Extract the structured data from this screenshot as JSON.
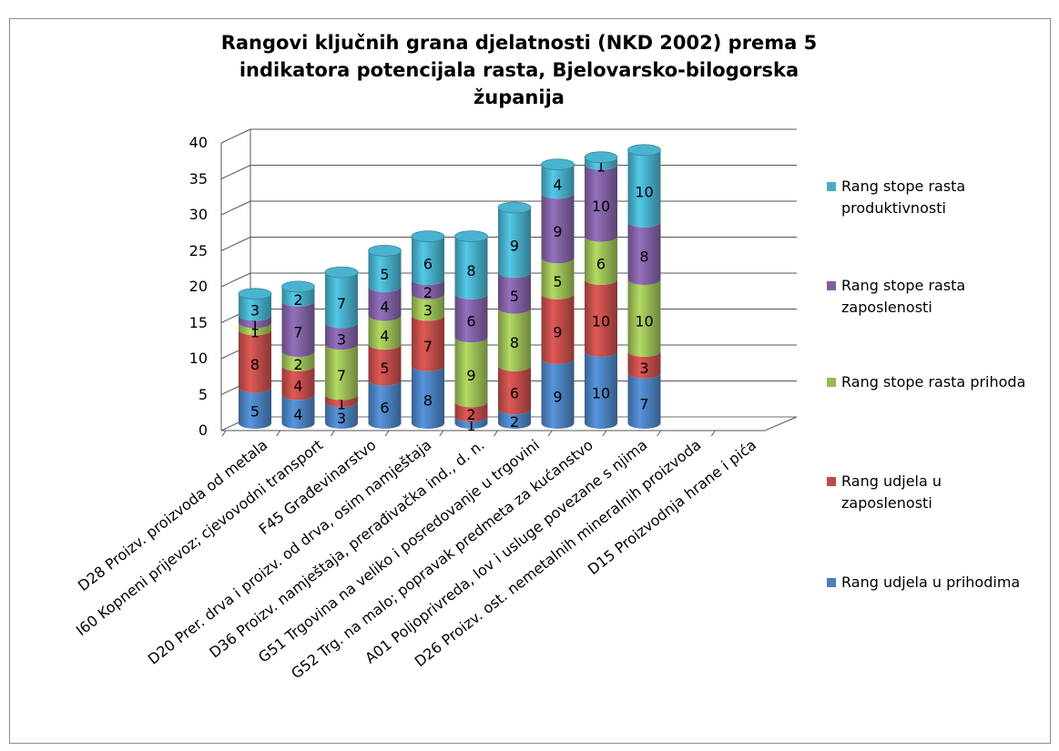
{
  "chart_data": {
    "type": "bar",
    "stacked": true,
    "three_d": true,
    "title": "Rangovi ključnih grana djelatnosti (NKD 2002) prema 5\nindikatora potencijala rasta, Bjelovarsko-bilogorska\nžupanija",
    "ylim": [
      0,
      40
    ],
    "yticks": [
      0,
      5,
      10,
      15,
      20,
      25,
      30,
      35,
      40
    ],
    "grid": true,
    "legend_position": "right",
    "categories": [
      "D28 Proizv. proizvoda od metala",
      "I60 Kopneni prijevoz; cjevovodni transport",
      "F45 Građevinarstvo",
      "D20 Prer. drva i proizv. od drva, osim namještaja",
      "D36 Proizv. namještaja, prerađivačka ind., d. n.",
      "G51 Trgovina na veliko i posredovanje u trgovini",
      "G52 Trg. na malo; popravak predmeta za kućanstvo",
      "A01 Poljoprivreda, lov i usluge povezane s njima",
      "D26 Proizv. ost. nemetalnih mineralnih proizvoda",
      "D15 Proizvodnja hrane i pića"
    ],
    "series": [
      {
        "name": "Rang udjela u prihodima",
        "color": "#4a7ebb",
        "values": [
          5,
          4,
          3,
          6,
          8,
          1,
          2,
          9,
          10,
          7
        ]
      },
      {
        "name": "Rang udjela u zaposlenosti",
        "color": "#be4b48",
        "values": [
          8,
          4,
          1,
          5,
          7,
          2,
          6,
          9,
          10,
          3
        ]
      },
      {
        "name": "Rang stope rasta prihoda",
        "color": "#98b954",
        "values": [
          1,
          2,
          7,
          4,
          3,
          9,
          8,
          5,
          6,
          10
        ]
      },
      {
        "name": "Rang stope rasta zaposlenosti",
        "color": "#7d5fa0",
        "values": [
          1,
          7,
          3,
          4,
          2,
          6,
          5,
          9,
          10,
          8
        ]
      },
      {
        "name": "Rang stope rasta produktivnosti",
        "color": "#46aac5",
        "values": [
          3,
          2,
          7,
          5,
          6,
          8,
          9,
          4,
          1,
          10
        ]
      }
    ]
  }
}
